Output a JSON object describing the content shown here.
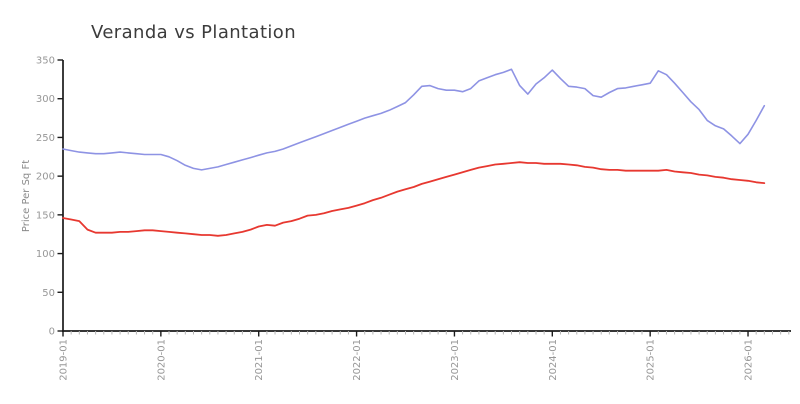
{
  "chart_data": {
    "type": "line",
    "title": "Veranda vs Plantation",
    "xlabel": "",
    "ylabel": "Price Per Sq Ft",
    "ylim": [
      0,
      350
    ],
    "yticks": [
      0,
      50,
      100,
      150,
      200,
      250,
      300,
      350
    ],
    "xtick_labels": [
      "2019-01",
      "2020-01",
      "2021-01",
      "2022-01",
      "2023-01",
      "2024-01",
      "2025-01",
      "2026-01"
    ],
    "x_start": "2019-01",
    "x_interval": "monthly",
    "grid": false,
    "legend_position": "none",
    "colors": {
      "axis": "#1a1a1a",
      "minor_tick": "#b5b5b5",
      "tick_label": "#979797",
      "axis_label": "#8a8a8a",
      "title": "#3c3c3c"
    },
    "series": [
      {
        "name": "Veranda",
        "color": "#8e93e4",
        "values": [
          235,
          233,
          231,
          230,
          229,
          229,
          230,
          231,
          230,
          229,
          228,
          228,
          228,
          225,
          220,
          214,
          210,
          208,
          210,
          212,
          215,
          218,
          221,
          224,
          227,
          230,
          232,
          235,
          239,
          243,
          247,
          251,
          255,
          259,
          263,
          267,
          271,
          275,
          278,
          281,
          285,
          290,
          295,
          305,
          316,
          317,
          313,
          311,
          311,
          309,
          313,
          323,
          327,
          331,
          334,
          338,
          317,
          306,
          319,
          327,
          337,
          326,
          316,
          315,
          313,
          304,
          302,
          308,
          313,
          314,
          316,
          318,
          320,
          336,
          331,
          320,
          308,
          296,
          286,
          272,
          265,
          261,
          252,
          242,
          254,
          272,
          291
        ]
      },
      {
        "name": "Plantation",
        "color": "#e73830",
        "values": [
          146,
          144,
          142,
          131,
          127,
          127,
          127,
          128,
          128,
          129,
          130,
          130,
          129,
          128,
          127,
          126,
          125,
          124,
          124,
          123,
          124,
          126,
          128,
          131,
          135,
          137,
          136,
          140,
          142,
          145,
          149,
          150,
          152,
          155,
          157,
          159,
          162,
          165,
          169,
          172,
          176,
          180,
          183,
          186,
          190,
          193,
          196,
          199,
          202,
          205,
          208,
          211,
          213,
          215,
          216,
          217,
          218,
          217,
          217,
          216,
          216,
          216,
          215,
          214,
          212,
          211,
          209,
          208,
          208,
          207,
          207,
          207,
          207,
          207,
          208,
          206,
          205,
          204,
          202,
          201,
          199,
          198,
          196,
          195,
          194,
          192,
          191
        ]
      }
    ]
  }
}
